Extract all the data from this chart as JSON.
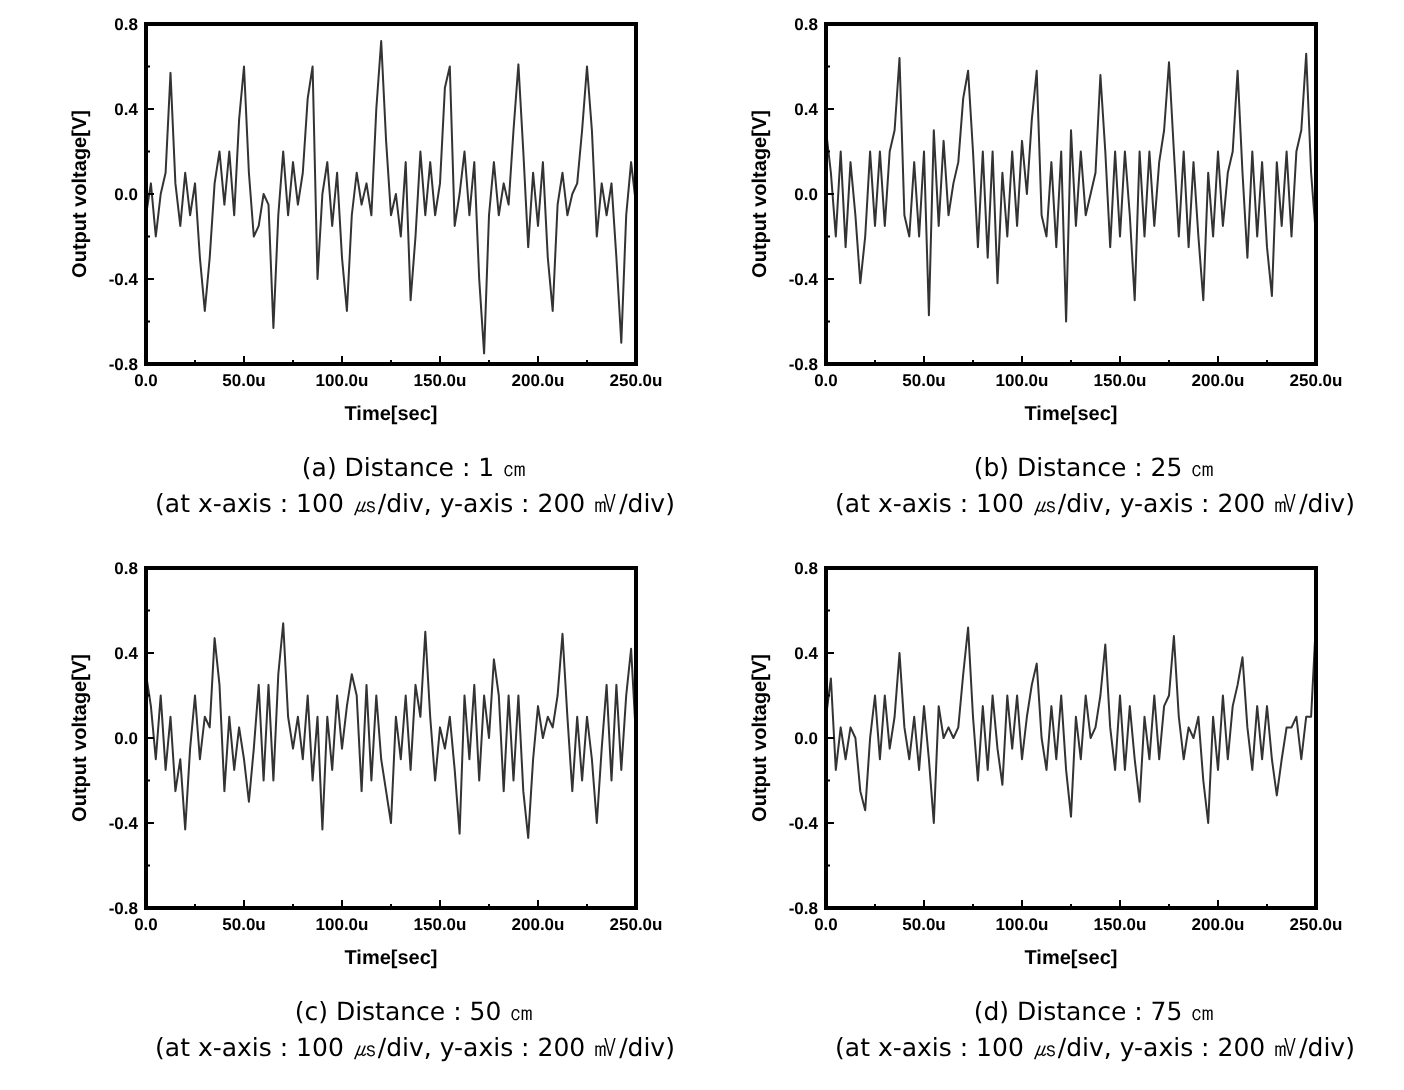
{
  "chart_data": [
    {
      "type": "line",
      "xlabel": "Time[sec]",
      "ylabel": "Output voltage[V]",
      "annotations": [
        "(a) Distance : 1 ㎝",
        "(at x-axis : 100 ㎲/div, y-axis : 200 ㎷/div)"
      ],
      "xlim": [
        0,
        250
      ],
      "ylim": [
        -0.8,
        0.8
      ],
      "xticks": [
        {
          "value": 0,
          "label": "0.0"
        },
        {
          "value": 25,
          "label": null
        },
        {
          "value": 50,
          "label": "50.0u"
        },
        {
          "value": 75,
          "label": null
        },
        {
          "value": 100,
          "label": "100.0u"
        },
        {
          "value": 125,
          "label": null
        },
        {
          "value": 150,
          "label": "150.0u"
        },
        {
          "value": 175,
          "label": null
        },
        {
          "value": 200,
          "label": "200.0u"
        },
        {
          "value": 225,
          "label": null
        },
        {
          "value": 250,
          "label": "250.0u"
        }
      ],
      "yticks": [
        {
          "value": -0.8,
          "label": "-0.8"
        },
        {
          "value": -0.6,
          "label": null
        },
        {
          "value": -0.4,
          "label": "-0.4"
        },
        {
          "value": -0.2,
          "label": null
        },
        {
          "value": 0,
          "label": "0.0"
        },
        {
          "value": 0.2,
          "label": null
        },
        {
          "value": 0.4,
          "label": "0.4"
        },
        {
          "value": 0.6,
          "label": null
        },
        {
          "value": 0.8,
          "label": "0.8"
        }
      ],
      "grid": false,
      "marker": "none",
      "line_style": "solid",
      "series": [
        {
          "color": "#333333",
          "x": [
            0,
            2.5,
            5,
            7.5,
            10,
            12.5,
            15,
            17.5,
            20,
            22.5,
            25,
            27.5,
            30,
            32.5,
            35,
            37.5,
            40,
            42.5,
            45,
            47.5,
            50,
            52.5,
            55,
            57.5,
            60,
            62.5,
            65,
            67.5,
            70,
            72.5,
            75,
            77.5,
            80,
            82.5,
            85,
            87.5,
            90,
            92.5,
            95,
            97.5,
            100,
            102.5,
            105,
            107.5,
            110,
            112.5,
            115,
            117.5,
            120,
            122.5,
            125,
            127.5,
            130,
            132.5,
            135,
            137.5,
            140,
            142.5,
            145,
            147.5,
            150,
            152.5,
            155,
            157.5,
            160,
            162.5,
            165,
            167.5,
            170,
            172.5,
            175,
            177.5,
            180,
            182.5,
            185,
            187.5,
            190,
            192.5,
            195,
            197.5,
            200,
            202.5,
            205,
            207.5,
            210,
            212.5,
            215,
            217.5,
            220,
            222.5,
            225,
            227.5,
            230,
            232.5,
            235,
            237.5,
            240,
            242.5,
            245,
            247.5,
            250
          ],
          "values": [
            -0.1,
            0.05,
            -0.2,
            0,
            0.1,
            0.57,
            0.05,
            -0.15,
            0.1,
            -0.1,
            0.05,
            -0.3,
            -0.55,
            -0.3,
            0.05,
            0.2,
            -0.05,
            0.2,
            -0.1,
            0.35,
            0.6,
            0.1,
            -0.2,
            -0.15,
            0,
            -0.05,
            -0.63,
            -0.1,
            0.2,
            -0.1,
            0.15,
            -0.05,
            0.1,
            0.45,
            0.6,
            -0.4,
            0,
            0.15,
            -0.15,
            0.1,
            -0.3,
            -0.55,
            -0.1,
            0.1,
            -0.05,
            0.05,
            -0.1,
            0.4,
            0.72,
            0.25,
            -0.1,
            0,
            -0.2,
            0.15,
            -0.5,
            -0.2,
            0.2,
            -0.1,
            0.15,
            -0.1,
            0.05,
            0.5,
            0.6,
            -0.15,
            0,
            0.2,
            -0.1,
            0.15,
            -0.4,
            -0.75,
            -0.1,
            0.15,
            -0.1,
            0.05,
            -0.05,
            0.3,
            0.61,
            0.2,
            -0.25,
            0.1,
            -0.15,
            0.15,
            -0.3,
            -0.55,
            -0.05,
            0.1,
            -0.1,
            0,
            0.05,
            0.3,
            0.6,
            0.3,
            -0.2,
            0.05,
            -0.1,
            0.05,
            -0.3,
            -0.7,
            -0.1,
            0.15,
            -0.05
          ]
        }
      ]
    },
    {
      "type": "line",
      "xlabel": "Time[sec]",
      "ylabel": "Output voltage[V]",
      "annotations": [
        "(b) Distance : 25 ㎝",
        "(at x-axis : 100 ㎲/div, y-axis : 200 ㎷/div)"
      ],
      "xlim": [
        0,
        250
      ],
      "ylim": [
        -0.8,
        0.8
      ],
      "xticks": [
        {
          "value": 0,
          "label": "0.0"
        },
        {
          "value": 25,
          "label": null
        },
        {
          "value": 50,
          "label": "50.0u"
        },
        {
          "value": 75,
          "label": null
        },
        {
          "value": 100,
          "label": "100.0u"
        },
        {
          "value": 125,
          "label": null
        },
        {
          "value": 150,
          "label": "150.0u"
        },
        {
          "value": 175,
          "label": null
        },
        {
          "value": 200,
          "label": "200.0u"
        },
        {
          "value": 225,
          "label": null
        },
        {
          "value": 250,
          "label": "250.0u"
        }
      ],
      "yticks": [
        {
          "value": -0.8,
          "label": "-0.8"
        },
        {
          "value": -0.6,
          "label": null
        },
        {
          "value": -0.4,
          "label": "-0.4"
        },
        {
          "value": -0.2,
          "label": null
        },
        {
          "value": 0,
          "label": "0.0"
        },
        {
          "value": 0.2,
          "label": null
        },
        {
          "value": 0.4,
          "label": "0.4"
        },
        {
          "value": 0.6,
          "label": null
        },
        {
          "value": 0.8,
          "label": "0.8"
        }
      ],
      "grid": false,
      "marker": "none",
      "line_style": "solid",
      "series": [
        {
          "color": "#333333",
          "x": [
            0,
            2.5,
            5,
            7.5,
            10,
            12.5,
            15,
            17.5,
            20,
            22.5,
            25,
            27.5,
            30,
            32.5,
            35,
            37.5,
            40,
            42.5,
            45,
            47.5,
            50,
            52.5,
            55,
            57.5,
            60,
            62.5,
            65,
            67.5,
            70,
            72.5,
            75,
            77.5,
            80,
            82.5,
            85,
            87.5,
            90,
            92.5,
            95,
            97.5,
            100,
            102.5,
            105,
            107.5,
            110,
            112.5,
            115,
            117.5,
            120,
            122.5,
            125,
            127.5,
            130,
            132.5,
            135,
            137.5,
            140,
            142.5,
            145,
            147.5,
            150,
            152.5,
            155,
            157.5,
            160,
            162.5,
            165,
            167.5,
            170,
            172.5,
            175,
            177.5,
            180,
            182.5,
            185,
            187.5,
            190,
            192.5,
            195,
            197.5,
            200,
            202.5,
            205,
            207.5,
            210,
            212.5,
            215,
            217.5,
            220,
            222.5,
            225,
            227.5,
            230,
            232.5,
            235,
            237.5,
            240,
            242.5,
            245,
            247.5,
            250
          ],
          "values": [
            0.3,
            0.1,
            -0.2,
            0.2,
            -0.25,
            0.15,
            -0.1,
            -0.42,
            -0.2,
            0.2,
            -0.15,
            0.2,
            -0.15,
            0.2,
            0.3,
            0.64,
            -0.1,
            -0.2,
            0.15,
            -0.2,
            0.2,
            -0.57,
            0.3,
            -0.15,
            0.25,
            -0.1,
            0.05,
            0.15,
            0.45,
            0.58,
            0.2,
            -0.25,
            0.2,
            -0.3,
            0.2,
            -0.42,
            0.1,
            -0.2,
            0.2,
            -0.15,
            0.25,
            0,
            0.35,
            0.58,
            -0.1,
            -0.2,
            0.15,
            -0.25,
            0.2,
            -0.6,
            0.3,
            -0.15,
            0.2,
            -0.1,
            0,
            0.1,
            0.56,
            0.2,
            -0.25,
            0.2,
            -0.2,
            0.2,
            -0.1,
            -0.5,
            0.2,
            -0.2,
            0.2,
            -0.15,
            0.15,
            0.3,
            0.62,
            0.2,
            -0.2,
            0.2,
            -0.25,
            0.15,
            -0.2,
            -0.5,
            0.1,
            -0.2,
            0.2,
            -0.15,
            0.1,
            0.2,
            0.58,
            0.1,
            -0.3,
            0.2,
            -0.2,
            0.15,
            -0.25,
            -0.48,
            0.15,
            -0.15,
            0.2,
            -0.2,
            0.2,
            0.3,
            0.66,
            0.1,
            -0.2
          ]
        }
      ]
    },
    {
      "type": "line",
      "xlabel": "Time[sec]",
      "ylabel": "Output voltage[V]",
      "annotations": [
        "(c) Distance : 50 ㎝",
        "(at x-axis : 100 ㎲/div, y-axis : 200 ㎷/div)"
      ],
      "xlim": [
        0,
        250
      ],
      "ylim": [
        -0.8,
        0.8
      ],
      "xticks": [
        {
          "value": 0,
          "label": "0.0"
        },
        {
          "value": 25,
          "label": null
        },
        {
          "value": 50,
          "label": "50.0u"
        },
        {
          "value": 75,
          "label": null
        },
        {
          "value": 100,
          "label": "100.0u"
        },
        {
          "value": 125,
          "label": null
        },
        {
          "value": 150,
          "label": "150.0u"
        },
        {
          "value": 175,
          "label": null
        },
        {
          "value": 200,
          "label": "200.0u"
        },
        {
          "value": 225,
          "label": null
        },
        {
          "value": 250,
          "label": "250.0u"
        }
      ],
      "yticks": [
        {
          "value": -0.8,
          "label": "-0.8"
        },
        {
          "value": -0.6,
          "label": null
        },
        {
          "value": -0.4,
          "label": "-0.4"
        },
        {
          "value": -0.2,
          "label": null
        },
        {
          "value": 0,
          "label": "0.0"
        },
        {
          "value": 0.2,
          "label": null
        },
        {
          "value": 0.4,
          "label": "0.4"
        },
        {
          "value": 0.6,
          "label": null
        },
        {
          "value": 0.8,
          "label": "0.8"
        }
      ],
      "grid": false,
      "marker": "none",
      "line_style": "solid",
      "series": [
        {
          "color": "#333333",
          "x": [
            0,
            2.5,
            5,
            7.5,
            10,
            12.5,
            15,
            17.5,
            20,
            22.5,
            25,
            27.5,
            30,
            32.5,
            35,
            37.5,
            40,
            42.5,
            45,
            47.5,
            50,
            52.5,
            55,
            57.5,
            60,
            62.5,
            65,
            67.5,
            70,
            72.5,
            75,
            77.5,
            80,
            82.5,
            85,
            87.5,
            90,
            92.5,
            95,
            97.5,
            100,
            102.5,
            105,
            107.5,
            110,
            112.5,
            115,
            117.5,
            120,
            122.5,
            125,
            127.5,
            130,
            132.5,
            135,
            137.5,
            140,
            142.5,
            145,
            147.5,
            150,
            152.5,
            155,
            157.5,
            160,
            162.5,
            165,
            167.5,
            170,
            172.5,
            175,
            177.5,
            180,
            182.5,
            185,
            187.5,
            190,
            192.5,
            195,
            197.5,
            200,
            202.5,
            205,
            207.5,
            210,
            212.5,
            215,
            217.5,
            220,
            222.5,
            225,
            227.5,
            230,
            232.5,
            235,
            237.5,
            240,
            242.5,
            245,
            247.5,
            250
          ],
          "values": [
            0.3,
            0.15,
            -0.1,
            0.2,
            -0.15,
            0.1,
            -0.25,
            -0.1,
            -0.43,
            -0.05,
            0.2,
            -0.1,
            0.1,
            0.05,
            0.47,
            0.25,
            -0.25,
            0.1,
            -0.15,
            0.05,
            -0.1,
            -0.3,
            -0.05,
            0.25,
            -0.2,
            0.25,
            -0.2,
            0.3,
            0.54,
            0.1,
            -0.05,
            0.1,
            -0.1,
            0.2,
            -0.2,
            0.1,
            -0.43,
            0.1,
            -0.15,
            0.2,
            -0.05,
            0.15,
            0.3,
            0.2,
            -0.25,
            0.25,
            -0.2,
            0.2,
            -0.1,
            -0.25,
            -0.4,
            0.1,
            -0.1,
            0.2,
            -0.15,
            0.25,
            0.1,
            0.5,
            0.1,
            -0.2,
            0.05,
            -0.05,
            0.1,
            -0.15,
            -0.45,
            0.2,
            -0.1,
            0.25,
            -0.2,
            0.2,
            0,
            0.37,
            0.2,
            -0.25,
            0.2,
            -0.2,
            0.2,
            -0.25,
            -0.47,
            -0.1,
            0.15,
            0,
            0.1,
            0.05,
            0.2,
            0.49,
            0.1,
            -0.25,
            0.1,
            -0.2,
            0.1,
            -0.1,
            -0.4,
            -0.05,
            0.25,
            -0.2,
            0.25,
            -0.15,
            0.2,
            0.42,
            0
          ]
        }
      ]
    },
    {
      "type": "line",
      "xlabel": "Time[sec]",
      "ylabel": "Output voltage[V]",
      "annotations": [
        "(d) Distance : 75 ㎝",
        "(at x-axis : 100 ㎲/div, y-axis : 200 ㎷/div)"
      ],
      "xlim": [
        0,
        250
      ],
      "ylim": [
        -0.8,
        0.8
      ],
      "xticks": [
        {
          "value": 0,
          "label": "0.0"
        },
        {
          "value": 25,
          "label": null
        },
        {
          "value": 50,
          "label": "50.0u"
        },
        {
          "value": 75,
          "label": null
        },
        {
          "value": 100,
          "label": "100.0u"
        },
        {
          "value": 125,
          "label": null
        },
        {
          "value": 150,
          "label": "150.0u"
        },
        {
          "value": 175,
          "label": null
        },
        {
          "value": 200,
          "label": "200.0u"
        },
        {
          "value": 225,
          "label": null
        },
        {
          "value": 250,
          "label": "250.0u"
        }
      ],
      "yticks": [
        {
          "value": -0.8,
          "label": "-0.8"
        },
        {
          "value": -0.6,
          "label": null
        },
        {
          "value": -0.4,
          "label": "-0.4"
        },
        {
          "value": -0.2,
          "label": null
        },
        {
          "value": 0,
          "label": "0.0"
        },
        {
          "value": 0.2,
          "label": null
        },
        {
          "value": 0.4,
          "label": "0.4"
        },
        {
          "value": 0.6,
          "label": null
        },
        {
          "value": 0.8,
          "label": "0.8"
        }
      ],
      "grid": false,
      "marker": "none",
      "line_style": "solid",
      "series": [
        {
          "color": "#333333",
          "x": [
            0,
            2.5,
            5,
            7.5,
            10,
            12.5,
            15,
            17.5,
            20,
            22.5,
            25,
            27.5,
            30,
            32.5,
            35,
            37.5,
            40,
            42.5,
            45,
            47.5,
            50,
            52.5,
            55,
            57.5,
            60,
            62.5,
            65,
            67.5,
            70,
            72.5,
            75,
            77.5,
            80,
            82.5,
            85,
            87.5,
            90,
            92.5,
            95,
            97.5,
            100,
            102.5,
            105,
            107.5,
            110,
            112.5,
            115,
            117.5,
            120,
            122.5,
            125,
            127.5,
            130,
            132.5,
            135,
            137.5,
            140,
            142.5,
            145,
            147.5,
            150,
            152.5,
            155,
            157.5,
            160,
            162.5,
            165,
            167.5,
            170,
            172.5,
            175,
            177.5,
            180,
            182.5,
            185,
            187.5,
            190,
            192.5,
            195,
            197.5,
            200,
            202.5,
            205,
            207.5,
            210,
            212.5,
            215,
            217.5,
            220,
            222.5,
            225,
            227.5,
            230,
            232.5,
            235,
            237.5,
            240,
            242.5,
            245,
            247.5,
            250
          ],
          "values": [
            0.1,
            0.28,
            -0.15,
            0.05,
            -0.1,
            0.05,
            0,
            -0.25,
            -0.34,
            0,
            0.2,
            -0.1,
            0.2,
            -0.05,
            0.1,
            0.4,
            0.05,
            -0.1,
            0.1,
            -0.15,
            0.15,
            -0.1,
            -0.4,
            0.15,
            0,
            0.05,
            0,
            0.05,
            0.3,
            0.52,
            0.1,
            -0.2,
            0.15,
            -0.15,
            0.2,
            -0.05,
            -0.22,
            0.2,
            -0.05,
            0.2,
            -0.1,
            0.1,
            0.25,
            0.35,
            0,
            -0.15,
            0.15,
            -0.1,
            0.2,
            -0.15,
            -0.37,
            0.1,
            -0.1,
            0.2,
            0,
            0.05,
            0.2,
            0.44,
            0.05,
            -0.15,
            0.2,
            -0.15,
            0.15,
            -0.1,
            -0.3,
            0.1,
            -0.1,
            0.2,
            -0.1,
            0.15,
            0.2,
            0.48,
            0.1,
            -0.1,
            0.05,
            0,
            0.1,
            -0.2,
            -0.4,
            0.1,
            -0.15,
            0.2,
            -0.1,
            0.15,
            0.25,
            0.38,
            0.05,
            -0.15,
            0.15,
            -0.1,
            0.15,
            -0.1,
            -0.27,
            -0.1,
            0.05,
            0.05,
            0.1,
            -0.1,
            0.1,
            0.1,
            0.55
          ]
        }
      ]
    }
  ]
}
